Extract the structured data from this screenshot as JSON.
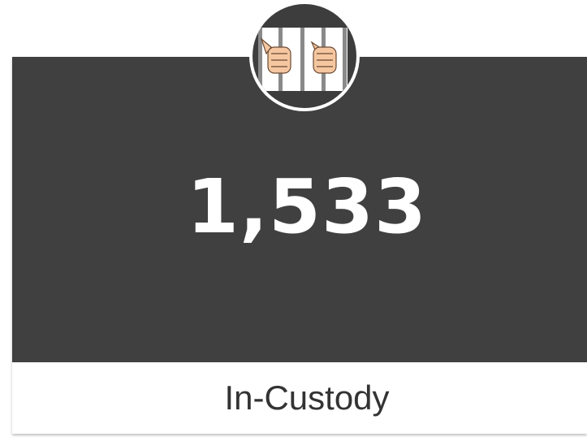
{
  "kpi": {
    "value": "1,533",
    "label": "In-Custody"
  }
}
